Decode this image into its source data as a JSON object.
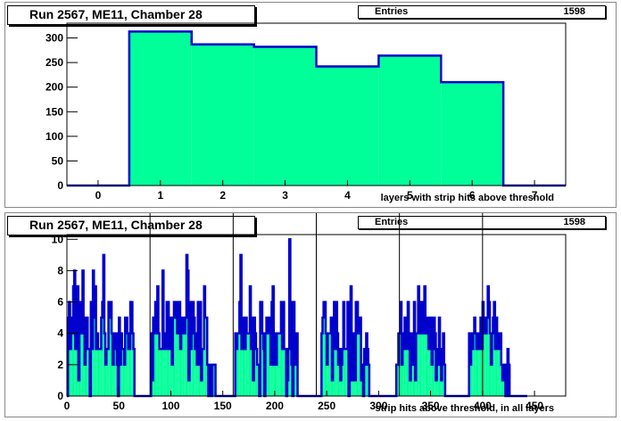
{
  "pads": [
    {
      "title": "Run 2567, ME11, Chamber 28",
      "stats_label": "Entries",
      "stats_value": "1598",
      "chart_data": {
        "type": "bar",
        "xlabel": "layers with strip hits above threshold",
        "ylabel": "",
        "xlim": [
          -0.5,
          7.5
        ],
        "ylim": [
          0,
          330
        ],
        "x_ticks": [
          0,
          1,
          2,
          3,
          4,
          5,
          6,
          7
        ],
        "y_ticks": [
          0,
          50,
          100,
          150,
          200,
          250,
          300
        ],
        "bins": [
          {
            "x": 0,
            "value": 0
          },
          {
            "x": 1,
            "value": 313
          },
          {
            "x": 2,
            "value": 287
          },
          {
            "x": 3,
            "value": 282
          },
          {
            "x": 4,
            "value": 242
          },
          {
            "x": 5,
            "value": 264
          },
          {
            "x": 6,
            "value": 210
          },
          {
            "x": 7,
            "value": 0
          }
        ],
        "fill_color": "#00ff99",
        "line_color": "#0000cc"
      }
    },
    {
      "title": "Run 2567, ME11, Chamber 28",
      "stats_label": "Entries",
      "stats_value": "1598",
      "chart_data": {
        "type": "bar",
        "xlabel": "strip hits above threshold, in all layers",
        "ylabel": "",
        "xlim": [
          0,
          480
        ],
        "ylim": [
          0,
          10.3
        ],
        "x_ticks": [
          0,
          50,
          100,
          150,
          200,
          250,
          300,
          350,
          400,
          450
        ],
        "y_ticks": [
          0,
          2,
          4,
          6,
          8,
          10
        ],
        "separators": [
          80,
          160,
          240,
          320,
          400
        ],
        "counts": [
          0,
          5,
          6,
          3,
          5,
          4,
          7,
          8,
          3,
          4,
          7,
          1,
          4,
          6,
          4,
          8,
          5,
          2,
          3,
          5,
          3,
          3,
          0,
          6,
          3,
          8,
          5,
          7,
          3,
          4,
          3,
          3,
          3,
          5,
          6,
          9,
          4,
          2,
          3,
          3,
          6,
          5,
          6,
          4,
          2,
          3,
          4,
          4,
          2,
          0,
          5,
          2,
          4,
          3,
          3,
          2,
          5,
          5,
          4,
          3,
          3,
          6,
          6,
          4,
          3,
          0,
          0,
          0,
          0,
          0,
          0,
          0,
          0,
          0,
          0,
          0,
          0,
          0,
          0,
          0,
          0,
          4,
          1,
          5,
          4,
          6,
          4,
          7,
          4,
          3,
          3,
          3,
          8,
          3,
          4,
          3,
          6,
          6,
          3,
          5,
          5,
          2,
          5,
          6,
          5,
          6,
          4,
          5,
          6,
          3,
          5,
          5,
          4,
          4,
          5,
          9,
          8,
          1,
          6,
          3,
          4,
          6,
          5,
          3,
          4,
          2,
          6,
          2,
          6,
          1,
          3,
          3,
          7,
          5,
          5,
          2,
          0,
          2,
          1,
          0,
          2,
          2,
          2,
          0,
          0,
          0,
          0,
          0,
          0,
          0,
          0,
          0,
          0,
          0,
          0,
          0,
          0,
          0,
          0,
          0,
          0,
          0,
          4,
          3,
          4,
          4,
          6,
          9,
          3,
          5,
          3,
          3,
          5,
          4,
          4,
          4,
          7,
          3,
          5,
          1,
          5,
          4,
          3,
          2,
          2,
          0,
          6,
          6,
          4,
          3,
          0,
          4,
          5,
          4,
          5,
          5,
          2,
          6,
          7,
          2,
          4,
          2,
          4,
          4,
          4,
          4,
          6,
          3,
          6,
          3,
          3,
          0,
          1,
          3,
          10,
          6,
          2,
          0,
          6,
          2,
          4,
          4,
          0,
          0,
          0,
          0,
          0,
          0,
          0,
          0,
          0,
          0,
          0,
          0,
          0,
          0,
          0,
          0,
          0,
          0,
          0,
          0,
          0,
          0,
          0,
          4,
          5,
          6,
          6,
          4,
          2,
          4,
          4,
          4,
          5,
          1,
          3,
          6,
          3,
          6,
          4,
          2,
          3,
          1,
          2,
          3,
          6,
          3,
          3,
          3,
          6,
          0,
          5,
          7,
          1,
          3,
          4,
          1,
          6,
          6,
          4,
          4,
          5,
          1,
          2,
          0,
          3,
          2,
          4,
          3,
          2,
          0,
          0,
          0,
          0,
          0,
          0,
          0,
          0,
          0,
          0,
          0,
          0,
          0,
          0,
          0,
          0,
          0,
          0,
          0,
          0,
          0,
          0,
          0,
          0,
          0,
          0,
          2,
          2,
          4,
          4,
          6,
          2,
          3,
          4,
          5,
          3,
          5,
          6,
          3,
          1,
          4,
          2,
          4,
          6,
          1,
          4,
          4,
          7,
          4,
          5,
          6,
          4,
          4,
          7,
          5,
          4,
          5,
          3,
          3,
          5,
          2,
          3,
          5,
          4,
          1,
          2,
          3,
          5,
          2,
          1,
          3,
          4,
          2,
          0,
          0,
          0,
          0,
          0,
          0,
          0,
          0,
          0,
          0,
          0,
          0,
          0,
          0,
          0,
          0,
          0,
          0,
          0,
          0,
          0,
          0,
          0,
          4,
          2,
          4,
          3,
          4,
          5,
          4,
          3,
          4,
          4,
          3,
          5,
          3,
          6,
          5,
          4,
          4,
          5,
          7,
          6,
          4,
          2,
          4,
          5,
          6,
          3,
          5,
          4,
          3,
          4,
          4,
          2,
          1,
          1,
          2,
          0,
          0,
          3,
          2,
          0,
          0,
          0,
          0,
          0,
          0,
          0,
          0,
          0,
          0,
          0,
          0,
          0,
          0,
          0,
          0,
          0
        ],
        "fill_color": "#00ff99",
        "line_color": "#0000cc"
      }
    }
  ]
}
